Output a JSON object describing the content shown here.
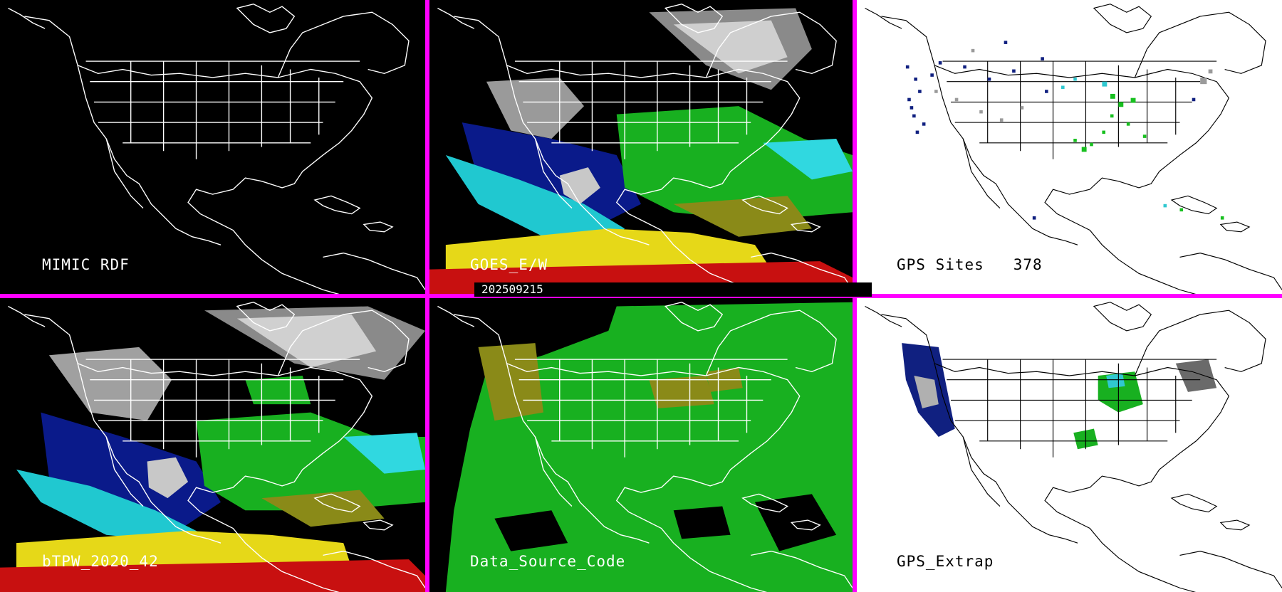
{
  "timestamp": "202509215",
  "colors": {
    "divider": "#ff00ff",
    "dark_bg": "#000000",
    "light_bg": "#ffffff"
  },
  "panels": [
    {
      "label": "MIMIC RDF"
    },
    {
      "label": "GOES_E/W"
    },
    {
      "label": "GPS Sites   378"
    },
    {
      "label": "bTPW_2020_42"
    },
    {
      "label": "Data_Source_Code"
    },
    {
      "label": "GPS_Extrap"
    }
  ]
}
